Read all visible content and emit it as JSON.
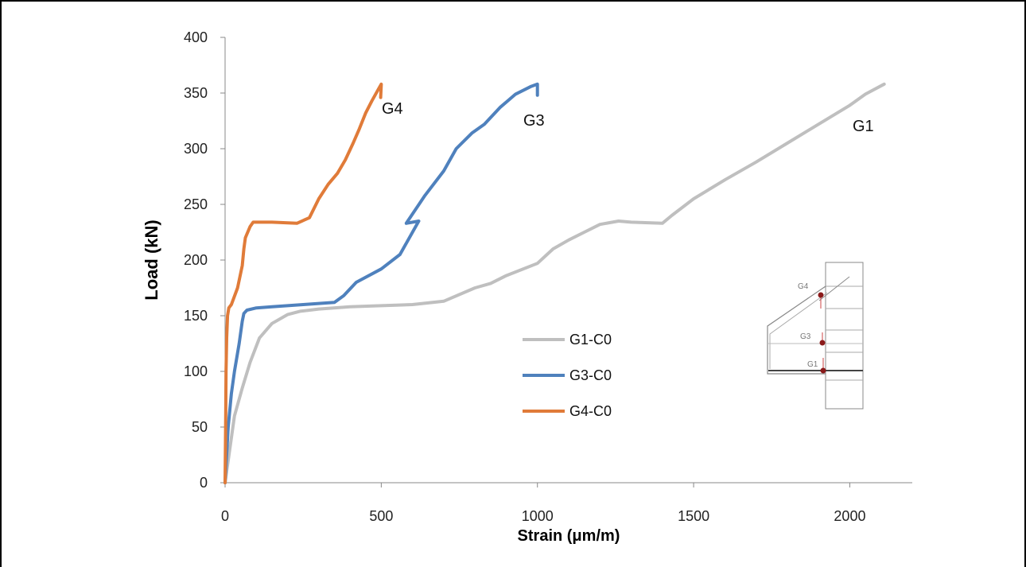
{
  "chart_data": {
    "type": "line",
    "title": "",
    "xlabel": "Strain (μm/m)",
    "ylabel": "Load (kN)",
    "xlim": [
      0,
      2200
    ],
    "ylim": [
      0,
      400
    ],
    "xticks": [
      "0",
      "500",
      "1000",
      "1500",
      "2000"
    ],
    "yticks": [
      "0",
      "50",
      "100",
      "150",
      "200",
      "250",
      "300",
      "350",
      "400"
    ],
    "grid": false,
    "legend_position": "center",
    "series": [
      {
        "name": "G1-C0",
        "color": "#bfbfbf",
        "x": [
          0,
          15,
          30,
          55,
          80,
          110,
          150,
          200,
          240,
          300,
          400,
          500,
          600,
          700,
          800,
          850,
          900,
          1000,
          1050,
          1100,
          1150,
          1200,
          1260,
          1300,
          1400,
          1430,
          1500,
          1600,
          1700,
          1800,
          1900,
          2000,
          2050,
          2110
        ],
        "y": [
          0,
          30,
          60,
          85,
          108,
          130,
          143,
          151,
          154,
          156,
          158,
          159,
          160,
          163,
          175,
          179,
          186,
          197,
          210,
          218,
          225,
          232,
          235,
          234,
          233,
          240,
          255,
          272,
          288,
          305,
          322,
          339,
          349,
          358
        ]
      },
      {
        "name": "G3-C0",
        "color": "#4f81bd",
        "x": [
          0,
          10,
          20,
          30,
          45,
          55,
          60,
          70,
          100,
          150,
          250,
          350,
          380,
          420,
          500,
          560,
          620,
          580,
          640,
          700,
          740,
          790,
          830,
          880,
          930,
          980,
          1000,
          1000
        ],
        "y": [
          0,
          50,
          80,
          100,
          125,
          145,
          152,
          155,
          157,
          158,
          160,
          162,
          168,
          180,
          192,
          205,
          235,
          233,
          258,
          280,
          300,
          314,
          322,
          337,
          349,
          356,
          358,
          348
        ],
        "label": "G3"
      },
      {
        "name": "G4-C0",
        "color": "#e07b39",
        "x": [
          0,
          2,
          3,
          5,
          8,
          12,
          20,
          40,
          55,
          60,
          65,
          80,
          90,
          150,
          230,
          270,
          300,
          330,
          360,
          385,
          410,
          430,
          450,
          470,
          490,
          500,
          498
        ],
        "y": [
          0,
          60,
          100,
          130,
          150,
          157,
          160,
          175,
          195,
          210,
          220,
          230,
          234,
          234,
          233,
          238,
          255,
          268,
          278,
          290,
          305,
          318,
          332,
          343,
          353,
          358,
          346
        ]
      }
    ],
    "annotations": [
      "G4",
      "G3",
      "G1"
    ],
    "inset_labels": [
      "G4",
      "G3",
      "G1"
    ]
  }
}
